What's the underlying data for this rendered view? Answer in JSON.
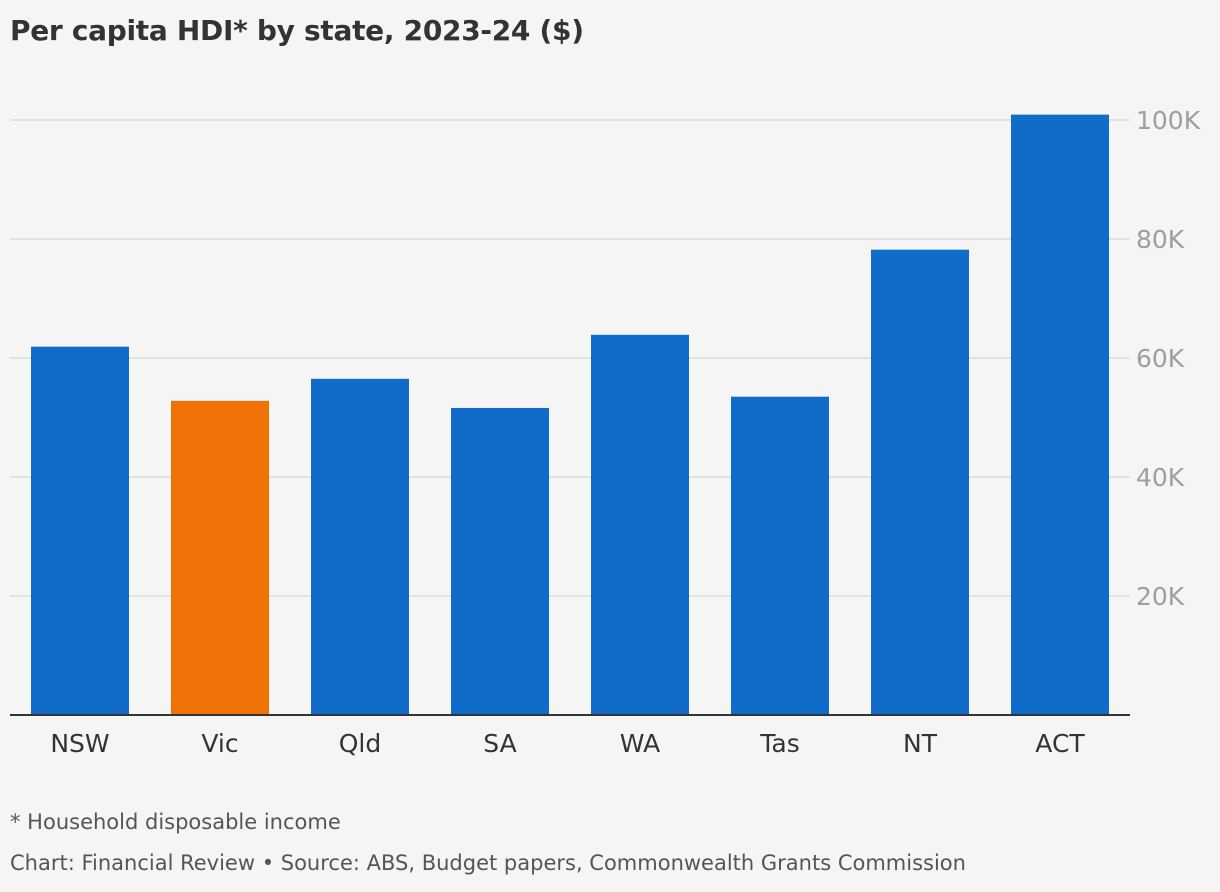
{
  "colors": {
    "background": "#f5f5f5",
    "bar": "#116bc8",
    "highlight": "#f07207",
    "grid": "#dcdcdc",
    "axis": "#333333",
    "tick_label": "#9e9e9e",
    "category_label": "#333333"
  },
  "chart_data": {
    "type": "bar",
    "title": "Per capita HDI* by state, 2023-24 ($)",
    "xlabel": "",
    "ylabel": "",
    "categories": [
      "NSW",
      "Vic",
      "Qld",
      "SA",
      "WA",
      "Tas",
      "NT",
      "ACT"
    ],
    "values": [
      61900,
      52800,
      56500,
      51600,
      63900,
      53500,
      78200,
      100900
    ],
    "highlight_category": "Vic",
    "ylim": [
      0,
      100000
    ],
    "y_ticks": [
      20000,
      40000,
      60000,
      80000,
      100000
    ],
    "y_tick_labels": [
      "20K",
      "40K",
      "60K",
      "80K",
      "100K"
    ],
    "y_axis_side": "right",
    "grid": true,
    "legend": false
  },
  "footnote": "* Household disposable income",
  "credit": "Chart: Financial Review • Source: ABS, Budget papers, Commonwealth Grants Commission"
}
